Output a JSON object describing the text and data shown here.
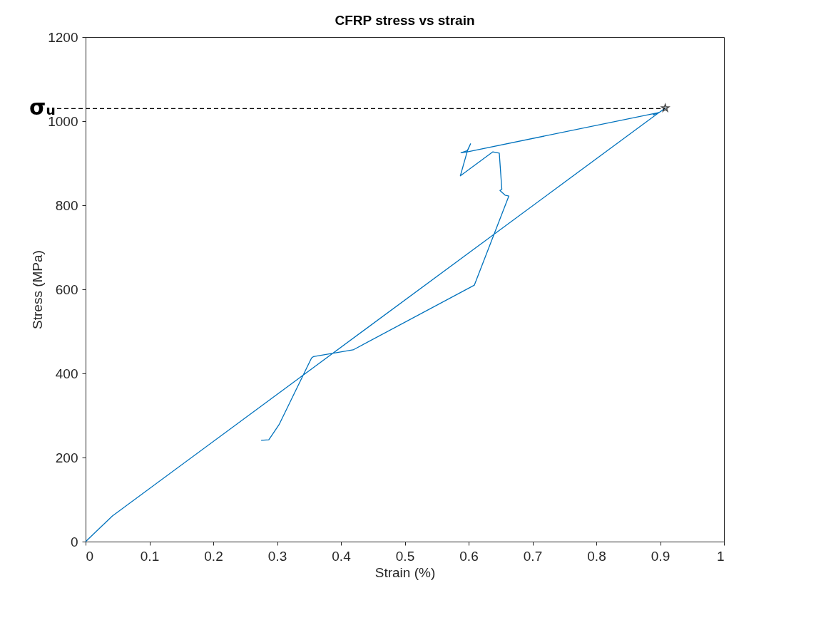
{
  "chart_data": {
    "type": "line",
    "title": "CFRP stress vs strain",
    "xlabel": "Strain (%)",
    "ylabel": "Stress (MPa)",
    "xlim": [
      0,
      1
    ],
    "xticks": [
      0,
      0.1,
      0.2,
      0.3,
      0.4,
      0.5,
      0.6,
      0.7,
      0.8,
      0.9,
      1
    ],
    "ylim": [
      0,
      1200
    ],
    "yticks": [
      0,
      200,
      400,
      600,
      800,
      1000,
      1200
    ],
    "grid": false,
    "series": [
      {
        "color": "#0072bd",
        "line_style": "solid",
        "x": [
          0.275,
          0.287,
          0.303,
          0.354,
          0.357,
          0.419,
          0.609,
          0.663,
          0.657,
          0.649,
          0.652,
          0.648,
          0.638,
          0.587,
          0.598,
          0.603,
          0.598,
          0.588,
          0.598,
          0.897,
          0.889,
          0.9,
          0.908,
          0.895,
          0.042,
          0
        ],
        "values": [
          241,
          242,
          278,
          437,
          440,
          456,
          610,
          822,
          824,
          835,
          838,
          924,
          927,
          870,
          929,
          946,
          930,
          925,
          927,
          1020,
          1015,
          1022,
          1031,
          1017,
          61,
          0
        ]
      },
      {
        "type": "scatter",
        "color": "#000000",
        "marker": "star",
        "x": [
          0.908
        ],
        "values": [
          1031
        ]
      }
    ],
    "ref_lines": [
      {
        "axis": "y",
        "value": 1030,
        "label": "σᵤ",
        "color": "#000000",
        "line_style": "dashed"
      }
    ]
  }
}
